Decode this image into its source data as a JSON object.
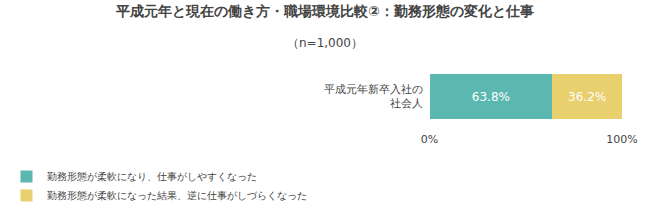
{
  "chart_data": {
    "type": "bar",
    "orientation": "horizontal",
    "stacked": true,
    "title": "平成元年と現在の働き方・職場環境比較②：勤務形態の変化と仕事",
    "subtitle": "（n=1,000）",
    "categories": [
      "平成元年新卒入社の\n社会人"
    ],
    "series": [
      {
        "name": "勤務形態が柔軟になり、仕事がしやすくなった",
        "color": "#5bb8b0",
        "values": [
          63.8
        ],
        "value_labels": [
          "63.8%"
        ]
      },
      {
        "name": "勤務形態が柔軟になった結果、逆に仕事がしづらくなった",
        "color": "#e8d06e",
        "values": [
          36.2
        ],
        "value_labels": [
          "36.2%"
        ]
      }
    ],
    "xlim": [
      0,
      100
    ],
    "xticks": [
      {
        "value": 0,
        "label": "0%"
      },
      {
        "value": 100,
        "label": "100%"
      }
    ],
    "data_labels": true,
    "grid": false,
    "legend": "bottom left"
  }
}
